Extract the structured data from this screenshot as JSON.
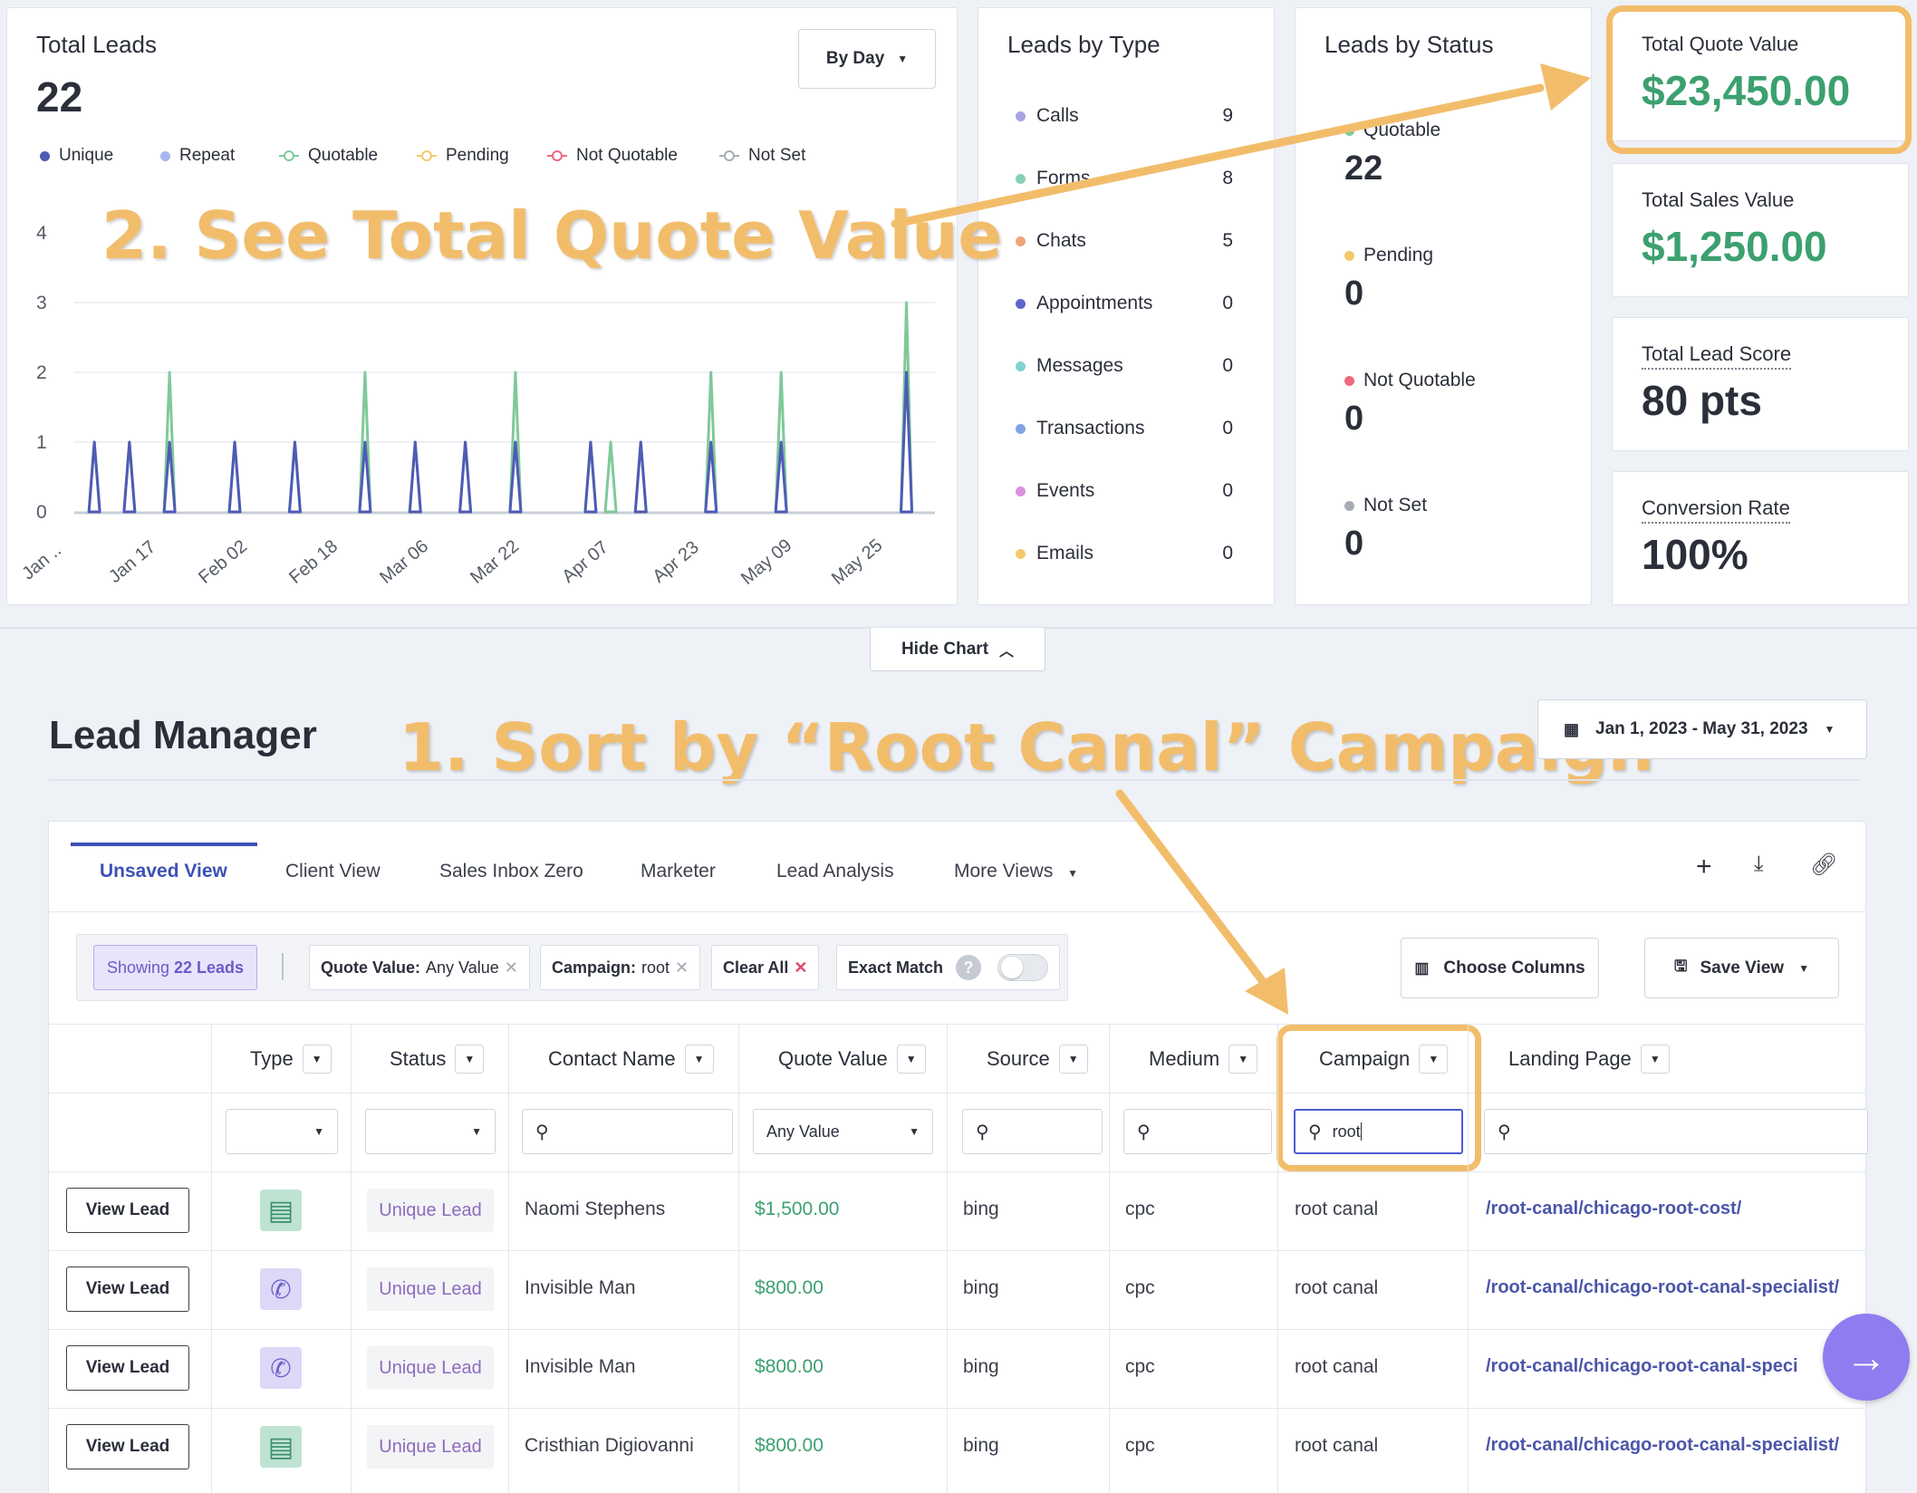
{
  "total_leads": {
    "title": "Total Leads",
    "value": "22",
    "range_button": "By Day",
    "legend": [
      {
        "label": "Unique",
        "color": "#4f5bb5",
        "style": "dot"
      },
      {
        "label": "Repeat",
        "color": "#a9b4ee",
        "style": "dot"
      },
      {
        "label": "Quotable",
        "color": "#7fc99a",
        "style": "ring"
      },
      {
        "label": "Pending",
        "color": "#f5c86b",
        "style": "ring"
      },
      {
        "label": "Not Quotable",
        "color": "#ec6a7d",
        "style": "ring"
      },
      {
        "label": "Not Set",
        "color": "#a7adb7",
        "style": "ring"
      }
    ]
  },
  "chart_data": {
    "type": "line",
    "y_ticks": [
      "4",
      "3",
      "2",
      "1",
      "0"
    ],
    "x_ticks": [
      "Jan ..",
      "Jan 17",
      "Feb 02",
      "Feb 18",
      "Mar 06",
      "Mar 22",
      "Apr 07",
      "Apr 23",
      "May 09",
      "May 25"
    ],
    "ylim": [
      0,
      4
    ],
    "xlim": [
      0,
      150
    ],
    "series": [
      {
        "name": "Quotable",
        "color": "#7fc99a",
        "points": [
          [
            4,
            1
          ],
          [
            11,
            1
          ],
          [
            19,
            2
          ],
          [
            32,
            1
          ],
          [
            44,
            1
          ],
          [
            58,
            2
          ],
          [
            68,
            1
          ],
          [
            78,
            1
          ],
          [
            88,
            2
          ],
          [
            103,
            1
          ],
          [
            107,
            1
          ],
          [
            113,
            1
          ],
          [
            127,
            2
          ],
          [
            141,
            2
          ],
          [
            166,
            3
          ]
        ]
      },
      {
        "name": "Unique",
        "color": "#4f5bb5",
        "points": [
          [
            4,
            1
          ],
          [
            11,
            1
          ],
          [
            19,
            1
          ],
          [
            32,
            1
          ],
          [
            44,
            1
          ],
          [
            58,
            1
          ],
          [
            68,
            1
          ],
          [
            78,
            1
          ],
          [
            88,
            1
          ],
          [
            103,
            1
          ],
          [
            113,
            1
          ],
          [
            127,
            1
          ],
          [
            141,
            1
          ],
          [
            166,
            2
          ]
        ]
      }
    ]
  },
  "leads_by_type": {
    "title": "Leads by Type",
    "items": [
      {
        "label": "Calls",
        "value": "9",
        "color": "#a9a3e6"
      },
      {
        "label": "Forms",
        "value": "8",
        "color": "#86d0b3"
      },
      {
        "label": "Chats",
        "value": "5",
        "color": "#f0a57d"
      },
      {
        "label": "Appointments",
        "value": "0",
        "color": "#5c67c6"
      },
      {
        "label": "Messages",
        "value": "0",
        "color": "#7fd3d1"
      },
      {
        "label": "Transactions",
        "value": "0",
        "color": "#7fa4e6"
      },
      {
        "label": "Events",
        "value": "0",
        "color": "#d893dc"
      },
      {
        "label": "Emails",
        "value": "0",
        "color": "#f3cb6c"
      }
    ]
  },
  "leads_by_status": {
    "title": "Leads by Status",
    "items": [
      {
        "label": "Quotable",
        "value": "22",
        "color": "#7fc99a"
      },
      {
        "label": "Pending",
        "value": "0",
        "color": "#f5c86b"
      },
      {
        "label": "Not Quotable",
        "value": "0",
        "color": "#ec6a7d"
      },
      {
        "label": "Not Set",
        "value": "0",
        "color": "#a7adb7"
      }
    ]
  },
  "kpis": [
    {
      "label": "Total Quote Value",
      "value": "$23,450.00",
      "green": true
    },
    {
      "label": "Total Sales Value",
      "value": "$1,250.00",
      "green": true
    },
    {
      "label": "Total Lead Score",
      "value": "80 pts",
      "green": false
    },
    {
      "label": "Conversion Rate",
      "value": "100%",
      "green": false
    }
  ],
  "hide_chart": "Hide Chart",
  "annotations": {
    "step2": "2. See Total Quote Value",
    "step1": "1. Sort by “Root Canal” Campaign"
  },
  "lead_manager": {
    "title": "Lead Manager",
    "date_range": "Jan 1, 2023 - May 31, 2023",
    "tabs": [
      "Unsaved View",
      "Client View",
      "Sales Inbox Zero",
      "Marketer",
      "Lead Analysis",
      "More Views"
    ],
    "showing_prefix": "Showing",
    "showing_count": "22 Leads",
    "filters": [
      {
        "key": "Quote Value:",
        "value": "Any Value"
      },
      {
        "key": "Campaign:",
        "value": "root"
      }
    ],
    "clear_all": "Clear All",
    "exact_match": "Exact Match",
    "choose_columns": "Choose Columns",
    "save_view": "Save View",
    "columns": [
      "Type",
      "Status",
      "Contact Name",
      "Quote Value",
      "Source",
      "Medium",
      "Campaign",
      "Landing Page"
    ],
    "quote_filter_value": "Any Value",
    "campaign_filter_value": "root",
    "view_lead_label": "View Lead",
    "rows": [
      {
        "type": "form",
        "status": "Unique Lead",
        "name": "Naomi Stephens",
        "quote": "$1,500.00",
        "source": "bing",
        "medium": "cpc",
        "campaign": "root canal",
        "landing": "/root-canal/chicago-root-cost/"
      },
      {
        "type": "call",
        "status": "Unique Lead",
        "name": "Invisible Man",
        "quote": "$800.00",
        "source": "bing",
        "medium": "cpc",
        "campaign": "root canal",
        "landing": "/root-canal/chicago-root-canal-specialist/"
      },
      {
        "type": "call",
        "status": "Unique Lead",
        "name": "Invisible Man",
        "quote": "$800.00",
        "source": "bing",
        "medium": "cpc",
        "campaign": "root canal",
        "landing": "/root-canal/chicago-root-canal-speci"
      },
      {
        "type": "form",
        "status": "Unique Lead",
        "name": "Cristhian Digiovanni",
        "quote": "$800.00",
        "source": "bing",
        "medium": "cpc",
        "campaign": "root canal",
        "landing": "/root-canal/chicago-root-canal-specialist/"
      }
    ]
  }
}
